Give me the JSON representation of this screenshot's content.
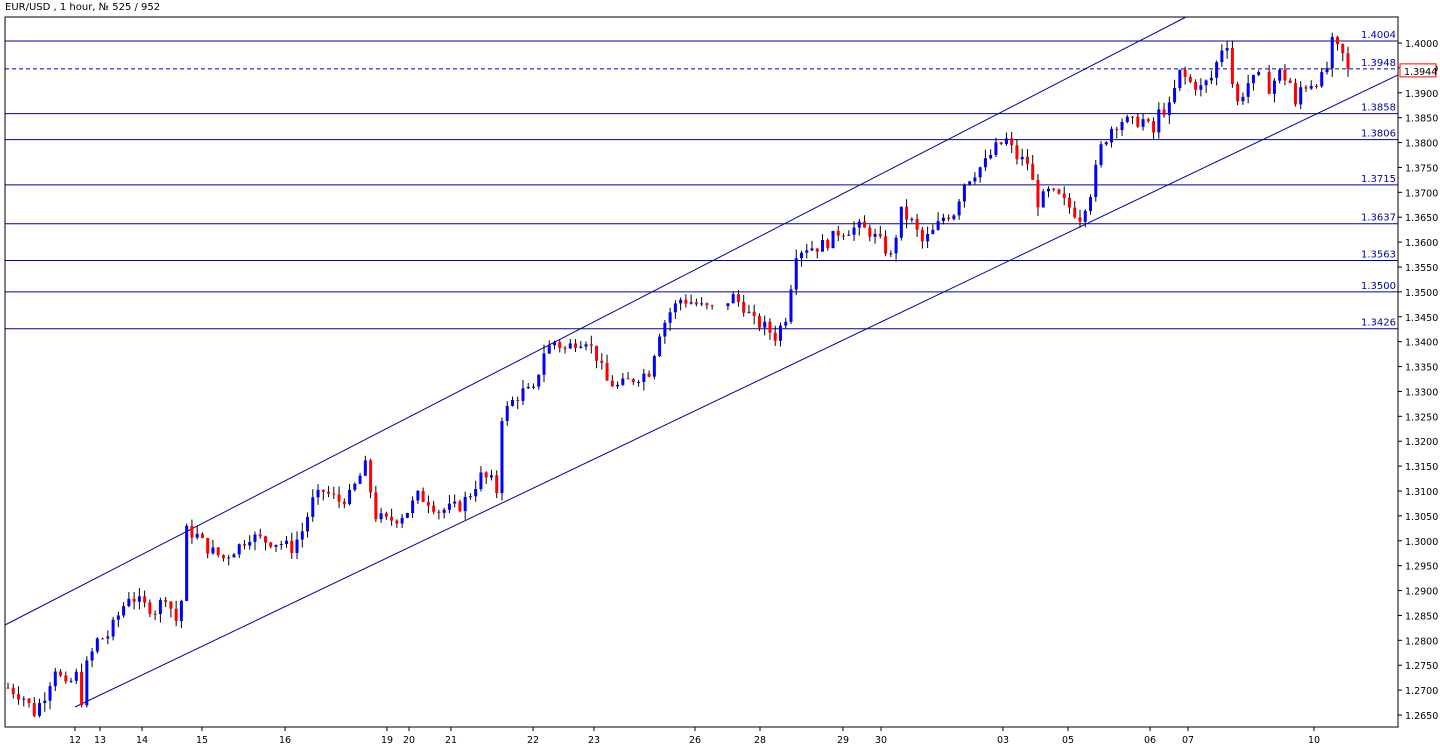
{
  "title": "EUR/USD , 1 hour, № 525 / 952",
  "colors": {
    "background": "#ffffff",
    "frame": "#000000",
    "level_line": "#0000aa",
    "channel_line": "#0000aa",
    "bull_candle": "#0000ff",
    "bear_candle": "#ff0000",
    "wick": "#000000",
    "price_tag": "#ff0000"
  },
  "chart_data": {
    "type": "candlestick",
    "symbol": "EUR/USD",
    "timeframe": "1 hour",
    "ylim": [
      1.2635,
      1.4035
    ],
    "y_ticks": [
      "1.4000",
      "1.3950",
      "1.3900",
      "1.3850",
      "1.3800",
      "1.3750",
      "1.3700",
      "1.3650",
      "1.3600",
      "1.3550",
      "1.3500",
      "1.3450",
      "1.3400",
      "1.3350",
      "1.3300",
      "1.3250",
      "1.3200",
      "1.3150",
      "1.3100",
      "1.3050",
      "1.3000",
      "1.2950",
      "1.2900",
      "1.2850",
      "1.2800",
      "1.2750",
      "1.2700",
      "1.2650"
    ],
    "x_ticks": [
      "12",
      "13",
      "14",
      "15",
      "16",
      "19",
      "20",
      "21",
      "22",
      "23",
      "26",
      "28",
      "29",
      "30",
      "03",
      "05",
      "06",
      "07",
      "10"
    ],
    "current_price": "1.3944",
    "horizontal_levels": [
      "1.4004",
      "1.3948",
      "1.3858",
      "1.3806",
      "1.3715",
      "1.3637",
      "1.3563",
      "1.3500",
      "1.3426"
    ],
    "price_path": [
      [
        0,
        1.2705
      ],
      [
        3,
        1.2685
      ],
      [
        5,
        1.2655
      ],
      [
        7,
        1.269
      ],
      [
        9,
        1.2745
      ],
      [
        11,
        1.2705
      ],
      [
        13,
        1.273
      ],
      [
        14,
        1.268
      ],
      [
        15,
        1.275
      ],
      [
        17,
        1.28
      ],
      [
        19,
        1.281
      ],
      [
        21,
        1.285
      ],
      [
        23,
        1.289
      ],
      [
        26,
        1.287
      ],
      [
        28,
        1.286
      ],
      [
        30,
        1.289
      ],
      [
        32,
        1.284
      ],
      [
        33,
        1.288
      ],
      [
        34,
        1.302
      ],
      [
        36,
        1.301
      ],
      [
        38,
        1.2985
      ],
      [
        41,
        1.2965
      ],
      [
        44,
        1.299
      ],
      [
        46,
        1.301
      ],
      [
        49,
        1.3
      ],
      [
        52,
        1.2995
      ],
      [
        54,
        1.2985
      ],
      [
        56,
        1.302
      ],
      [
        58,
        1.308
      ],
      [
        60,
        1.31
      ],
      [
        63,
        1.308
      ],
      [
        65,
        1.309
      ],
      [
        67,
        1.313
      ],
      [
        68,
        1.315
      ],
      [
        70,
        1.305
      ],
      [
        72,
        1.304
      ],
      [
        74,
        1.3045
      ],
      [
        76,
        1.306
      ],
      [
        78,
        1.309
      ],
      [
        80,
        1.308
      ],
      [
        82,
        1.306
      ],
      [
        84,
        1.3065
      ],
      [
        86,
        1.307
      ],
      [
        88,
        1.3095
      ],
      [
        90,
        1.313
      ],
      [
        92,
        1.312
      ],
      [
        93,
        1.31
      ],
      [
        94,
        1.325
      ],
      [
        96,
        1.328
      ],
      [
        98,
        1.33
      ],
      [
        100,
        1.33
      ],
      [
        102,
        1.338
      ],
      [
        104,
        1.34
      ],
      [
        106,
        1.3385
      ],
      [
        108,
        1.34
      ],
      [
        110,
        1.3405
      ],
      [
        112,
        1.337
      ],
      [
        114,
        1.332
      ],
      [
        116,
        1.331
      ],
      [
        118,
        1.332
      ],
      [
        120,
        1.333
      ],
      [
        122,
        1.334
      ],
      [
        124,
        1.342
      ],
      [
        126,
        1.346
      ],
      [
        128,
        1.3485
      ],
      [
        130,
        1.348
      ],
      [
        132,
        1.347
      ],
      [
        134,
        1.3465
      ],
      [
        136,
        1.3475
      ],
      [
        138,
        1.349
      ],
      [
        140,
        1.347
      ],
      [
        142,
        1.344
      ],
      [
        144,
        1.343
      ],
      [
        146,
        1.341
      ],
      [
        148,
        1.345
      ],
      [
        150,
        1.358
      ],
      [
        152,
        1.359
      ],
      [
        154,
        1.359
      ],
      [
        156,
        1.36
      ],
      [
        158,
        1.362
      ],
      [
        160,
        1.3625
      ],
      [
        162,
        1.363
      ],
      [
        164,
        1.362
      ],
      [
        166,
        1.36
      ],
      [
        168,
        1.357
      ],
      [
        170,
        1.366
      ],
      [
        172,
        1.364
      ],
      [
        174,
        1.36
      ],
      [
        176,
        1.362
      ],
      [
        178,
        1.365
      ],
      [
        180,
        1.366
      ],
      [
        182,
        1.372
      ],
      [
        184,
        1.374
      ],
      [
        186,
        1.376
      ],
      [
        188,
        1.379
      ],
      [
        190,
        1.3805
      ],
      [
        192,
        1.377
      ],
      [
        194,
        1.376
      ],
      [
        196,
        1.368
      ],
      [
        198,
        1.37
      ],
      [
        200,
        1.369
      ],
      [
        202,
        1.367
      ],
      [
        204,
        1.365
      ],
      [
        206,
        1.37
      ],
      [
        208,
        1.379
      ],
      [
        210,
        1.383
      ],
      [
        212,
        1.3845
      ],
      [
        214,
        1.384
      ],
      [
        216,
        1.3845
      ],
      [
        218,
        1.382
      ],
      [
        219,
        1.386
      ],
      [
        221,
        1.387
      ],
      [
        223,
        1.394
      ],
      [
        225,
        1.392
      ],
      [
        227,
        1.391
      ],
      [
        229,
        1.393
      ],
      [
        231,
        1.399
      ],
      [
        232,
        1.4
      ],
      [
        233,
        1.392
      ],
      [
        234,
        1.388
      ],
      [
        236,
        1.392
      ],
      [
        238,
        1.393
      ],
      [
        240,
        1.391
      ],
      [
        242,
        1.394
      ],
      [
        244,
        1.392
      ],
      [
        245,
        1.387
      ],
      [
        246,
        1.391
      ],
      [
        248,
        1.392
      ],
      [
        250,
        1.393
      ],
      [
        251,
        1.395
      ],
      [
        252,
        1.4
      ],
      [
        254,
        1.3975
      ],
      [
        255,
        1.3944
      ]
    ]
  }
}
